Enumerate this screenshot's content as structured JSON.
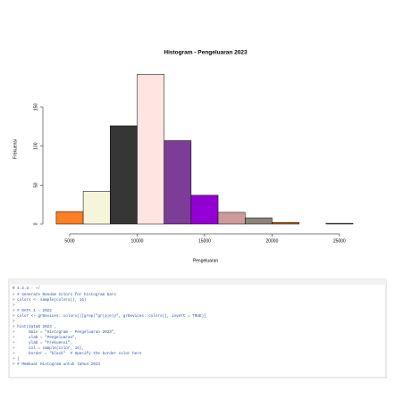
{
  "chart_data": {
    "type": "histogram",
    "title": "Histogram - Pengeluaran 2023",
    "xlabel": "Pengeluaran",
    "ylabel": "Frekuensi",
    "bins": [
      4000,
      6000,
      8000,
      10000,
      12000,
      14000,
      16000,
      18000,
      20000,
      22000,
      24000,
      26000
    ],
    "counts": [
      16,
      42,
      126,
      192,
      107,
      37,
      15,
      8,
      2,
      0,
      1
    ],
    "colors": [
      "#ff7f24",
      "#f5f5dc",
      "#363636",
      "#ffe4e1",
      "#7d3c98",
      "#9400d3",
      "#cd9b9b",
      "#8b8378",
      "#cd6600",
      "#eeeeee",
      "#7f7f7f"
    ],
    "xlim": [
      4000,
      26000
    ],
    "xticks": [
      5000,
      10000,
      15000,
      20000,
      25000
    ],
    "ylim": [
      0,
      200
    ],
    "yticks": [
      0,
      50,
      100,
      150
    ]
  },
  "console": {
    "header": "R 4.2.3 · ~/",
    "lines": [
      "> # Generate Random Colors for histogram bars",
      "> colors <- sample(colors(), 16)",
      ">",
      "> # DATA 1 - 2022",
      "> color <- grDevices::colors()[grep(\"gr(a|e)y\", grDevices::colors(), invert = TRUE)]",
      ">",
      "> hist(data$`2023`,",
      "+      main = \"Histogram - Pengeluaran 2023\",",
      "+      xlab = \"Pengeluaran\",",
      "+      ylab = \"Frekuensi\",",
      "+      col = sample(color, 16),",
      "+      border = \"black\"  # Specify the border color here",
      "+ )",
      "> # Membuat Histogram untuk tahun 2023"
    ]
  }
}
